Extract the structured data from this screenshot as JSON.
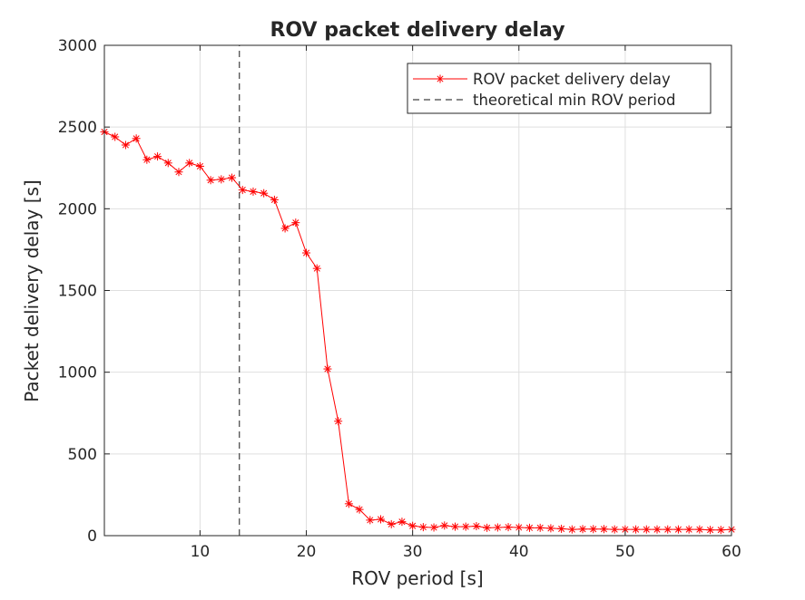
{
  "chart_data": {
    "type": "line",
    "title": "ROV packet delivery delay",
    "xlabel": "ROV period [s]",
    "ylabel": "Packet delivery delay [s]",
    "xlim": [
      1,
      60
    ],
    "ylim": [
      0,
      3000
    ],
    "x_ticks": [
      10,
      20,
      30,
      40,
      50,
      60
    ],
    "y_ticks": [
      0,
      500,
      1000,
      1500,
      2000,
      2500,
      3000
    ],
    "grid": true,
    "legend_position": "top-right",
    "series": [
      {
        "name": "ROV packet delivery delay",
        "color": "#ff0000",
        "line_style": "solid",
        "marker": "asterisk",
        "x": [
          1,
          2,
          3,
          4,
          5,
          6,
          7,
          8,
          9,
          10,
          11,
          12,
          13,
          14,
          15,
          16,
          17,
          18,
          19,
          20,
          21,
          22,
          23,
          24,
          25,
          26,
          27,
          28,
          29,
          30,
          31,
          32,
          33,
          34,
          35,
          36,
          37,
          38,
          39,
          40,
          41,
          42,
          43,
          44,
          45,
          46,
          47,
          48,
          49,
          50,
          51,
          52,
          53,
          54,
          55,
          56,
          57,
          58,
          59,
          60
        ],
        "y": [
          2470,
          2440,
          2390,
          2430,
          2300,
          2320,
          2280,
          2225,
          2280,
          2260,
          2175,
          2180,
          2190,
          2115,
          2105,
          2095,
          2055,
          1880,
          1915,
          1730,
          1635,
          1020,
          700,
          195,
          160,
          95,
          100,
          70,
          85,
          60,
          52,
          50,
          62,
          55,
          55,
          58,
          48,
          50,
          52,
          50,
          48,
          48,
          45,
          42,
          38,
          40,
          40,
          40,
          38,
          38,
          38,
          38,
          38,
          38,
          38,
          38,
          38,
          35,
          35,
          38
        ]
      },
      {
        "name": "theoretical min ROV period",
        "color": "#404040",
        "line_style": "dashed",
        "x": [
          13.7,
          13.7
        ],
        "y": [
          0,
          3000
        ]
      }
    ]
  }
}
